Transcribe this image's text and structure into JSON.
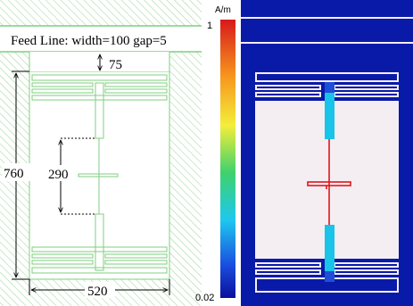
{
  "left_panel": {
    "feed_line_label": "Feed Line: width=100 gap=5",
    "dim_top": "75",
    "dim_height": "760",
    "dim_center": "290",
    "dim_width": "520",
    "colors": {
      "line": "#7fcf7f",
      "hatch": "#9ad29a",
      "dim": "#000000"
    }
  },
  "right_panel": {
    "colorbar_unit": "A/m",
    "colorbar_max": "1",
    "colorbar_min": "0.02",
    "colors": {
      "background": "#0a1aa8",
      "substrate": "#f4eef2",
      "hot": "#e0151a",
      "mid": "#19c3e9"
    }
  }
}
